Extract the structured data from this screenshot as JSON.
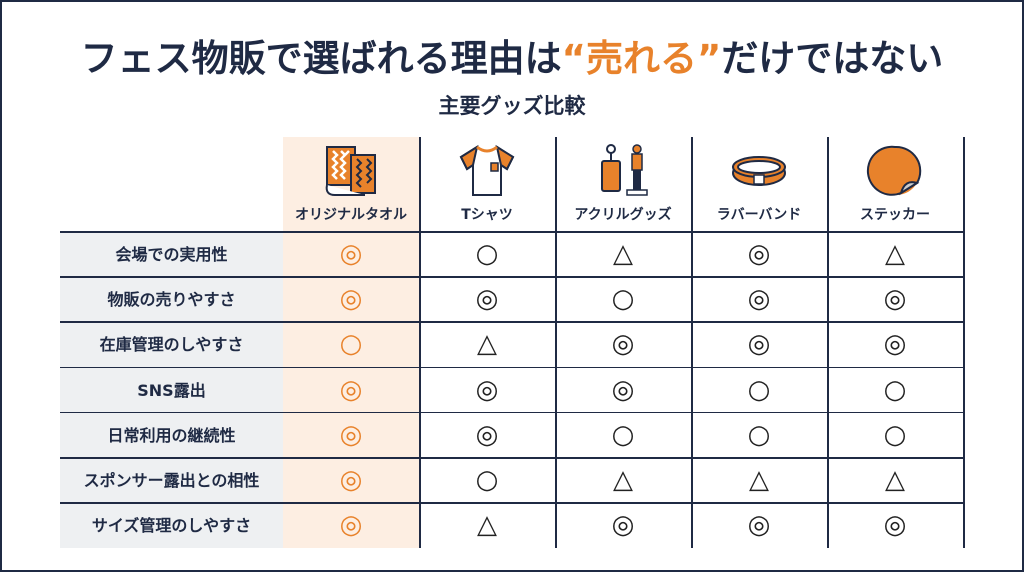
{
  "title": {
    "before": "フェス物販で選ばれる理由は",
    "highlight": "“売れる”",
    "after": "だけではない"
  },
  "subtitle": "主要グッズ比較",
  "colors": {
    "navy": "#1f2a44",
    "orange": "#e8822b",
    "highlight_bg": "#fdeee2"
  },
  "columns": [
    {
      "label": "オリジナルタオル",
      "icon": "towel-icon"
    },
    {
      "label": "Tシャツ",
      "icon": "tshirt-icon"
    },
    {
      "label": "アクリルグッズ",
      "icon": "acrylic-goods-icon"
    },
    {
      "label": "ラバーバンド",
      "icon": "rubber-band-icon"
    },
    {
      "label": "ステッカー",
      "icon": "sticker-icon"
    }
  ],
  "rows": [
    {
      "label": "会場での実用性",
      "values": [
        "◎",
        "○",
        "△",
        "◎",
        "△"
      ]
    },
    {
      "label": "物販の売りやすさ",
      "values": [
        "◎",
        "◎",
        "○",
        "◎",
        "◎"
      ]
    },
    {
      "label": "在庫管理のしやすさ",
      "values": [
        "○",
        "△",
        "◎",
        "◎",
        "◎"
      ]
    },
    {
      "label": "SNS露出",
      "values": [
        "◎",
        "◎",
        "◎",
        "○",
        "○"
      ]
    },
    {
      "label": "日常利用の継続性",
      "values": [
        "◎",
        "◎",
        "○",
        "○",
        "○"
      ]
    },
    {
      "label": "スポンサー露出との相性",
      "values": [
        "◎",
        "○",
        "△",
        "△",
        "△"
      ]
    },
    {
      "label": "サイズ管理のしやすさ",
      "values": [
        "◎",
        "△",
        "◎",
        "◎",
        "◎"
      ]
    }
  ]
}
